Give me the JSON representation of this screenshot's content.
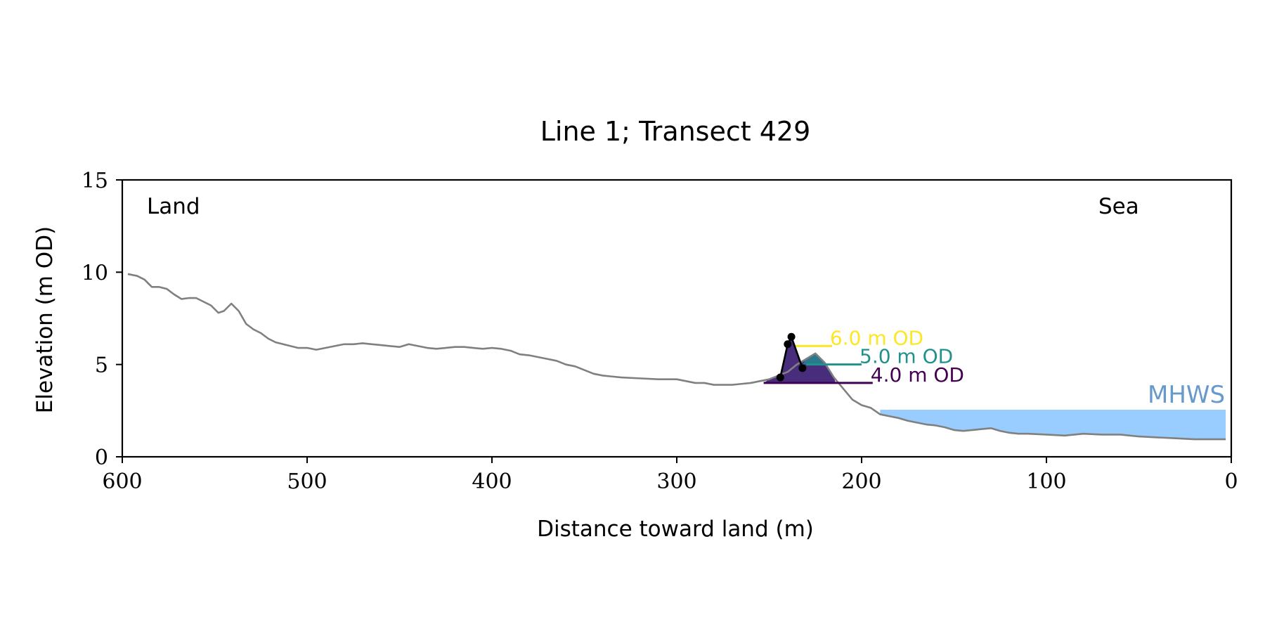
{
  "chart_data": {
    "type": "line",
    "title": "Line 1; Transect 429",
    "xlabel": "Distance toward land (m)",
    "ylabel": "Elevation (m OD)",
    "xlim": [
      600,
      0
    ],
    "ylim": [
      0,
      15
    ],
    "x_reversed": true,
    "grid": false,
    "xticks": [
      600,
      500,
      400,
      300,
      200,
      100,
      0
    ],
    "yticks": [
      0,
      5,
      10,
      15
    ],
    "corner_labels": {
      "left": "Land",
      "right": "Sea"
    },
    "colors": {
      "profile": "#808080",
      "mhws": "#99ccff",
      "mhws_text": "#6699cc",
      "level_4": "#440154",
      "level_5": "#21918c",
      "level_6": "#fde725",
      "dune_fill": "#472d7b",
      "dune_fill_upper": "#2a788e",
      "markers": "#000000"
    },
    "series": [
      {
        "x": [
          597,
          592,
          588,
          584,
          580,
          576,
          572,
          568,
          564,
          560,
          556,
          552,
          548,
          545,
          541,
          537,
          533,
          529,
          525,
          521,
          517,
          513,
          505,
          500,
          495,
          490,
          485,
          480,
          475,
          470,
          465,
          460,
          455,
          450,
          445,
          440,
          435,
          430,
          425,
          420,
          415,
          410,
          405,
          400,
          395,
          390,
          385,
          380,
          375,
          370,
          365,
          360,
          355,
          350,
          345,
          340,
          335,
          330,
          320,
          310,
          300,
          295,
          290,
          285,
          280,
          275,
          270,
          265,
          260,
          255,
          250,
          245,
          240,
          235,
          230,
          225,
          220,
          215,
          210,
          205,
          200,
          195,
          190,
          185,
          180,
          175,
          170,
          165,
          160,
          155,
          150,
          145,
          140,
          135,
          130,
          125,
          120,
          115,
          110,
          100,
          90,
          80,
          70,
          60,
          50,
          40,
          30,
          20,
          10,
          3
        ],
        "y": [
          9.9,
          9.8,
          9.6,
          9.2,
          9.2,
          9.1,
          8.8,
          8.55,
          8.6,
          8.6,
          8.4,
          8.2,
          7.8,
          7.9,
          8.3,
          7.9,
          7.2,
          6.9,
          6.7,
          6.4,
          6.2,
          6.1,
          5.9,
          5.9,
          5.8,
          5.9,
          6.0,
          6.1,
          6.1,
          6.15,
          6.1,
          6.05,
          6.0,
          5.95,
          6.1,
          6.0,
          5.9,
          5.85,
          5.9,
          5.95,
          5.95,
          5.9,
          5.85,
          5.9,
          5.85,
          5.75,
          5.55,
          5.5,
          5.4,
          5.3,
          5.2,
          5.0,
          4.9,
          4.7,
          4.5,
          4.4,
          4.35,
          4.3,
          4.25,
          4.2,
          4.2,
          4.1,
          4.0,
          4.0,
          3.9,
          3.9,
          3.9,
          3.95,
          4.0,
          4.1,
          4.2,
          4.4,
          4.6,
          5.0,
          5.3,
          5.6,
          5.1,
          4.3,
          3.7,
          3.1,
          2.8,
          2.65,
          2.3,
          2.2,
          2.1,
          1.95,
          1.85,
          1.75,
          1.7,
          1.6,
          1.45,
          1.4,
          1.45,
          1.5,
          1.55,
          1.4,
          1.3,
          1.25,
          1.25,
          1.2,
          1.15,
          1.25,
          1.2,
          1.2,
          1.1,
          1.05,
          1.0,
          0.95,
          0.95,
          0.95
        ]
      }
    ],
    "mhws": {
      "label": "MHWS",
      "level": 2.55,
      "x_from": 190,
      "x_to": 3
    },
    "levels": [
      {
        "label": "4.0 m OD",
        "elevation": 4.0,
        "x_from": 253,
        "x_to": 194,
        "color": "#440154"
      },
      {
        "label": "5.0 m OD",
        "elevation": 5.0,
        "x_from": 230,
        "x_to": 200,
        "color": "#21918c"
      },
      {
        "label": "6.0 m OD",
        "elevation": 6.0,
        "x_from": 236,
        "x_to": 216,
        "color": "#fde725"
      }
    ],
    "dune_points": {
      "x": [
        244,
        240,
        238,
        232
      ],
      "y": [
        4.3,
        6.1,
        6.5,
        4.8
      ]
    }
  }
}
